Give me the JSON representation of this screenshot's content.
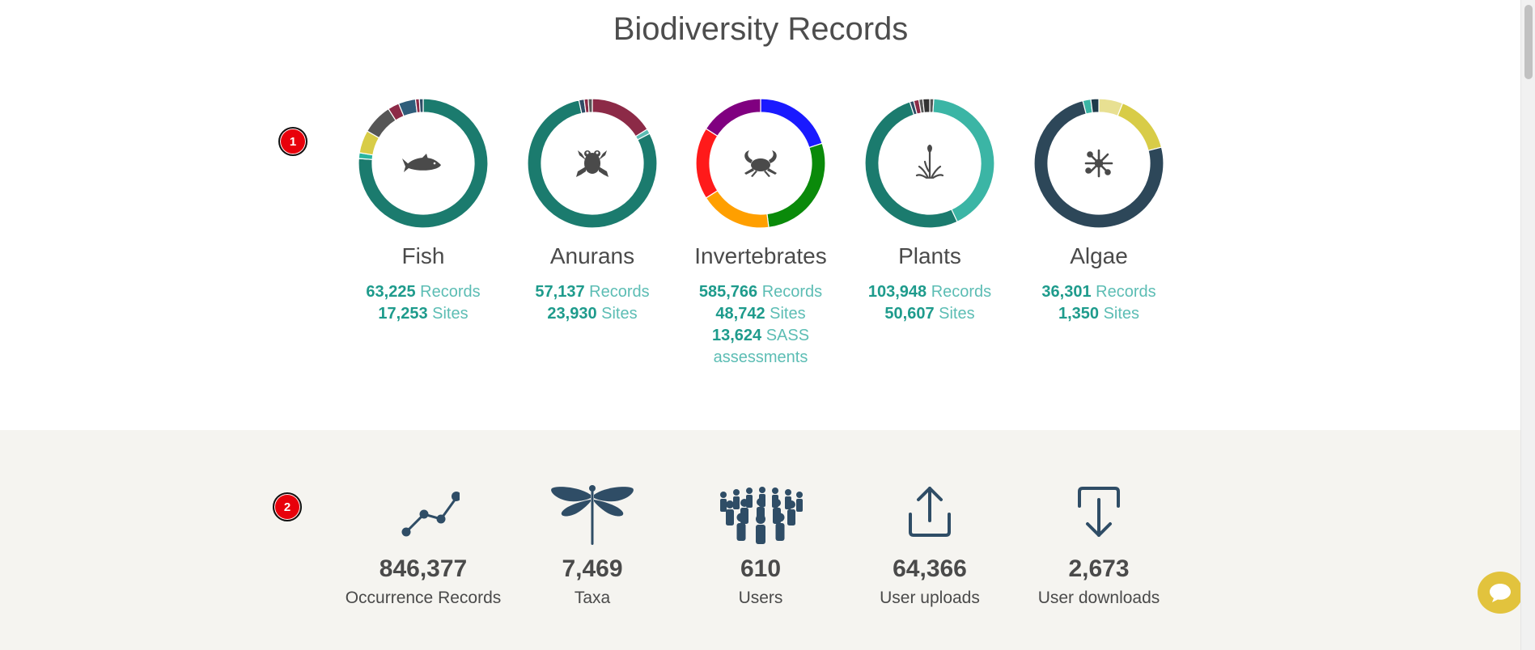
{
  "page": {
    "title": "Biodiversity Records",
    "markers": [
      "1",
      "2"
    ]
  },
  "colors": {
    "number": "#1e9b8c",
    "label": "#5cbdb4",
    "icon": "#2f4d66",
    "band_bg": "#f5f4f0",
    "chat": "#e2c33d",
    "marker": "#e8000b"
  },
  "modules": [
    {
      "name": "Fish",
      "icon": "fish-icon",
      "stats": [
        {
          "value": "63,225",
          "label": "Records"
        },
        {
          "value": "17,253",
          "label": "Sites"
        }
      ],
      "chart_share": [
        {
          "value": 80,
          "color": "#1b7b6e"
        },
        {
          "value": 1.5,
          "color": "#2ab5a0"
        },
        {
          "value": 6,
          "color": "#d8cc47"
        },
        {
          "value": 8,
          "color": "#565656"
        },
        {
          "value": 3,
          "color": "#8c2a47"
        },
        {
          "value": 4.5,
          "color": "#2f5d7a"
        },
        {
          "value": 1,
          "color": "#8c2a47"
        },
        {
          "value": 1,
          "color": "#2f4d66"
        }
      ]
    },
    {
      "name": "Anurans",
      "icon": "frog-icon",
      "stats": [
        {
          "value": "57,137",
          "label": "Records"
        },
        {
          "value": "23,930",
          "label": "Sites"
        }
      ],
      "chart_share": [
        {
          "value": 16,
          "color": "#8c2a47"
        },
        {
          "value": 1.2,
          "color": "#5cbdb4"
        },
        {
          "value": 78.5,
          "color": "#1b7b6e"
        },
        {
          "value": 1.3,
          "color": "#2f4d66"
        },
        {
          "value": 1,
          "color": "#8c2a47"
        },
        {
          "value": 1,
          "color": "#565656"
        }
      ]
    },
    {
      "name": "Invertebrates",
      "icon": "crab-icon",
      "stats": [
        {
          "value": "585,766",
          "label": "Records"
        },
        {
          "value": "48,742",
          "label": "Sites"
        },
        {
          "value": "13,624",
          "label": "SASS assessments"
        }
      ],
      "chart_share": [
        {
          "value": 20,
          "color": "#1a1aff"
        },
        {
          "value": 28,
          "color": "#0a8a0a"
        },
        {
          "value": 18,
          "color": "#ff9f00"
        },
        {
          "value": 18,
          "color": "#ff1a1a"
        },
        {
          "value": 16,
          "color": "#800080"
        }
      ]
    },
    {
      "name": "Plants",
      "icon": "plant-icon",
      "stats": [
        {
          "value": "103,948",
          "label": "Records"
        },
        {
          "value": "50,607",
          "label": "Sites"
        }
      ],
      "chart_share": [
        {
          "value": 1,
          "color": "#565656"
        },
        {
          "value": 42,
          "color": "#3bb5a5"
        },
        {
          "value": 52,
          "color": "#1b7b6e"
        },
        {
          "value": 1,
          "color": "#2f4d66"
        },
        {
          "value": 1.3,
          "color": "#8c2a47"
        },
        {
          "value": 1,
          "color": "#565656"
        },
        {
          "value": 1.7,
          "color": "#333333"
        }
      ]
    },
    {
      "name": "Algae",
      "icon": "algae-icon",
      "stats": [
        {
          "value": "36,301",
          "label": "Records"
        },
        {
          "value": "1,350",
          "label": "Sites"
        }
      ],
      "chart_share": [
        {
          "value": 6,
          "color": "#e8e092"
        },
        {
          "value": 15,
          "color": "#d8cc47"
        },
        {
          "value": 75,
          "color": "#2d4759"
        },
        {
          "value": 2,
          "color": "#3bb5a5"
        },
        {
          "value": 2,
          "color": "#1e3a4a"
        }
      ]
    }
  ],
  "summary": [
    {
      "value": "846,377",
      "label": "Occurrence Records",
      "icon": "line-chart-icon"
    },
    {
      "value": "7,469",
      "label": "Taxa",
      "icon": "dragonfly-icon"
    },
    {
      "value": "610",
      "label": "Users",
      "icon": "users-group-icon"
    },
    {
      "value": "64,366",
      "label": "User uploads",
      "icon": "upload-icon"
    },
    {
      "value": "2,673",
      "label": "User downloads",
      "icon": "download-icon"
    }
  ]
}
